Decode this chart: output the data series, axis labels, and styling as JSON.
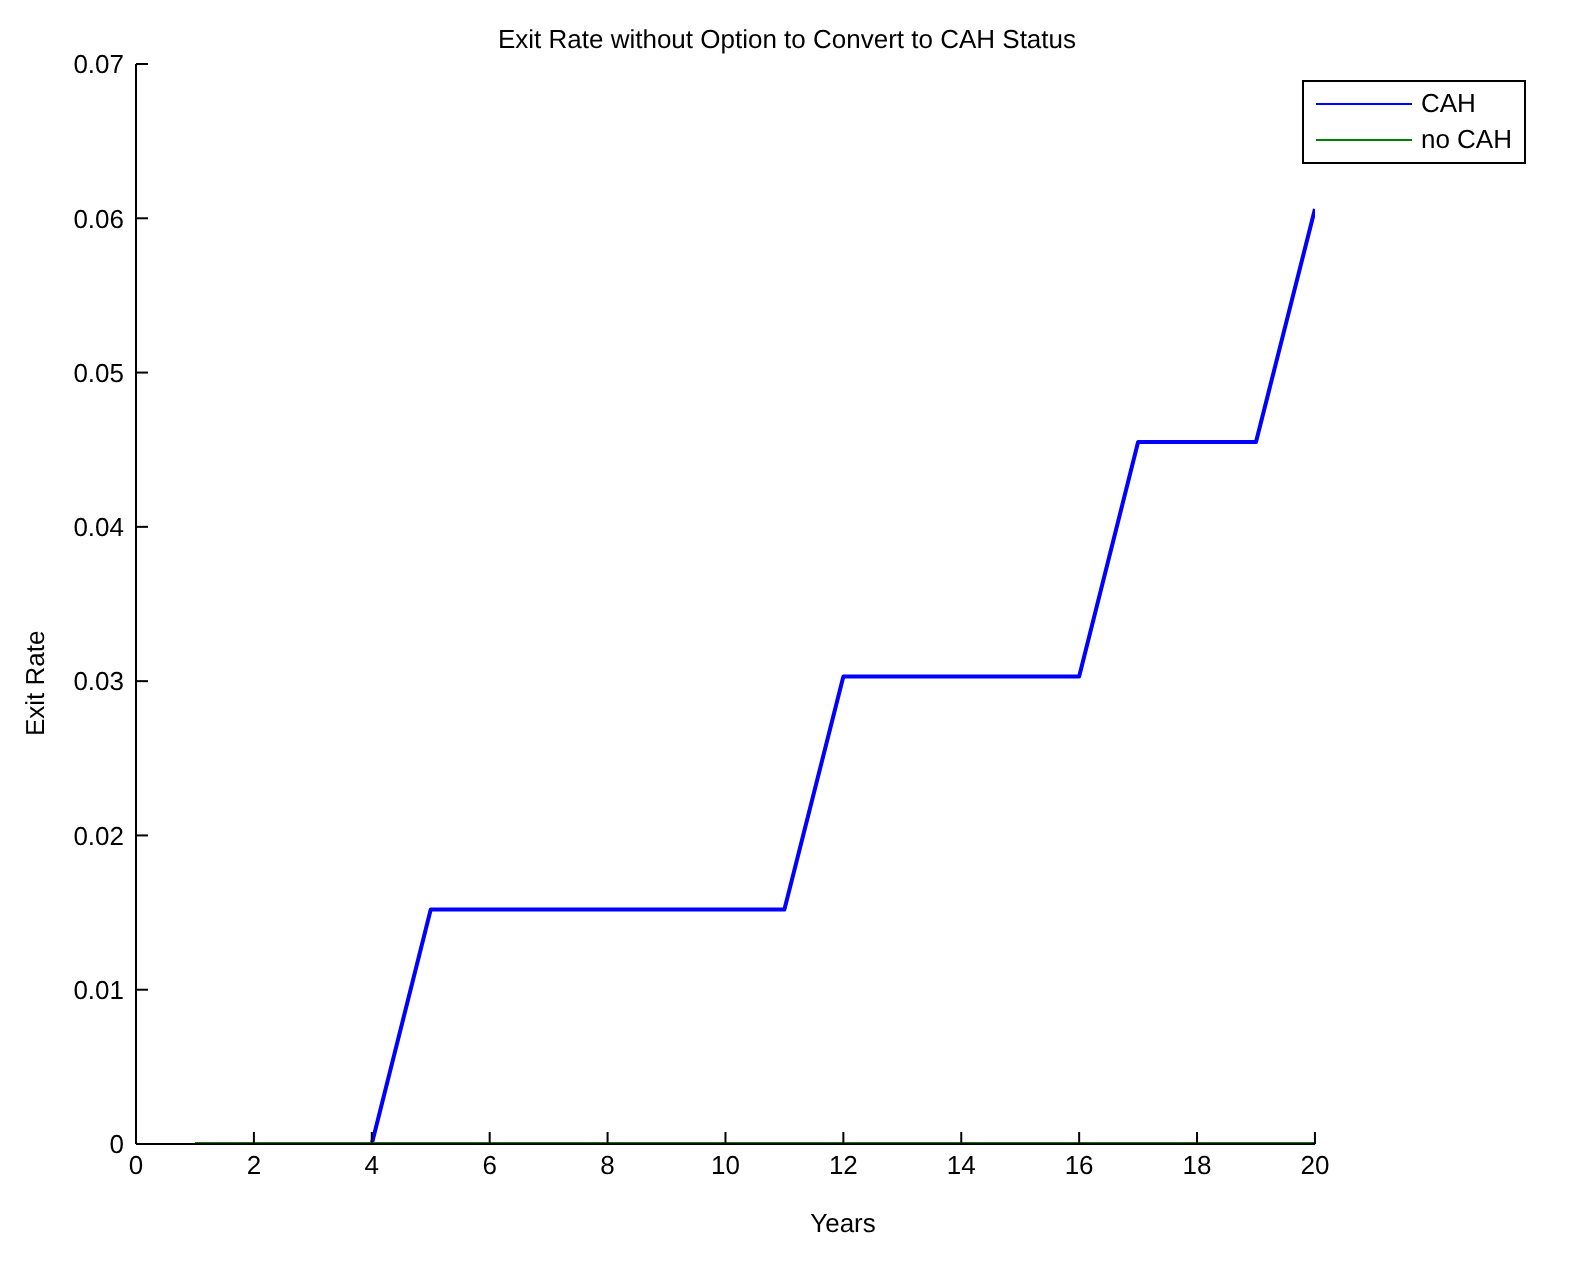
{
  "chart_data": {
    "type": "line",
    "title": "Exit Rate without Option to Convert to CAH Status",
    "xlabel": "Years",
    "ylabel": "Exit Rate",
    "x": [
      1,
      2,
      3,
      4,
      5,
      6,
      7,
      8,
      9,
      10,
      11,
      12,
      13,
      14,
      15,
      16,
      17,
      18,
      19,
      20
    ],
    "series": [
      {
        "name": "CAH",
        "color": "#0000ff",
        "values": [
          null,
          null,
          null,
          0,
          0.0152,
          0.0152,
          0.0152,
          0.0152,
          0.0152,
          0.0152,
          0.0152,
          0.0303,
          0.0303,
          0.0303,
          0.0303,
          0.0303,
          0.0455,
          0.0455,
          0.0455,
          0.0606
        ]
      },
      {
        "name": "no CAH",
        "color": "#008000",
        "values": [
          0,
          0,
          0,
          0,
          0,
          0,
          0,
          0,
          0,
          0,
          0,
          0,
          0,
          0,
          0,
          0,
          0,
          0,
          0,
          0
        ]
      }
    ],
    "xlim": [
      0,
      20
    ],
    "xticks": [
      0,
      2,
      4,
      6,
      8,
      10,
      12,
      14,
      16,
      18,
      20
    ],
    "ylim": [
      0,
      0.07
    ],
    "yticks": [
      0,
      0.01,
      0.02,
      0.03,
      0.04,
      0.05,
      0.06,
      0.07
    ],
    "grid": false,
    "legend": "top right",
    "marker": "none",
    "line_style": "solid"
  }
}
